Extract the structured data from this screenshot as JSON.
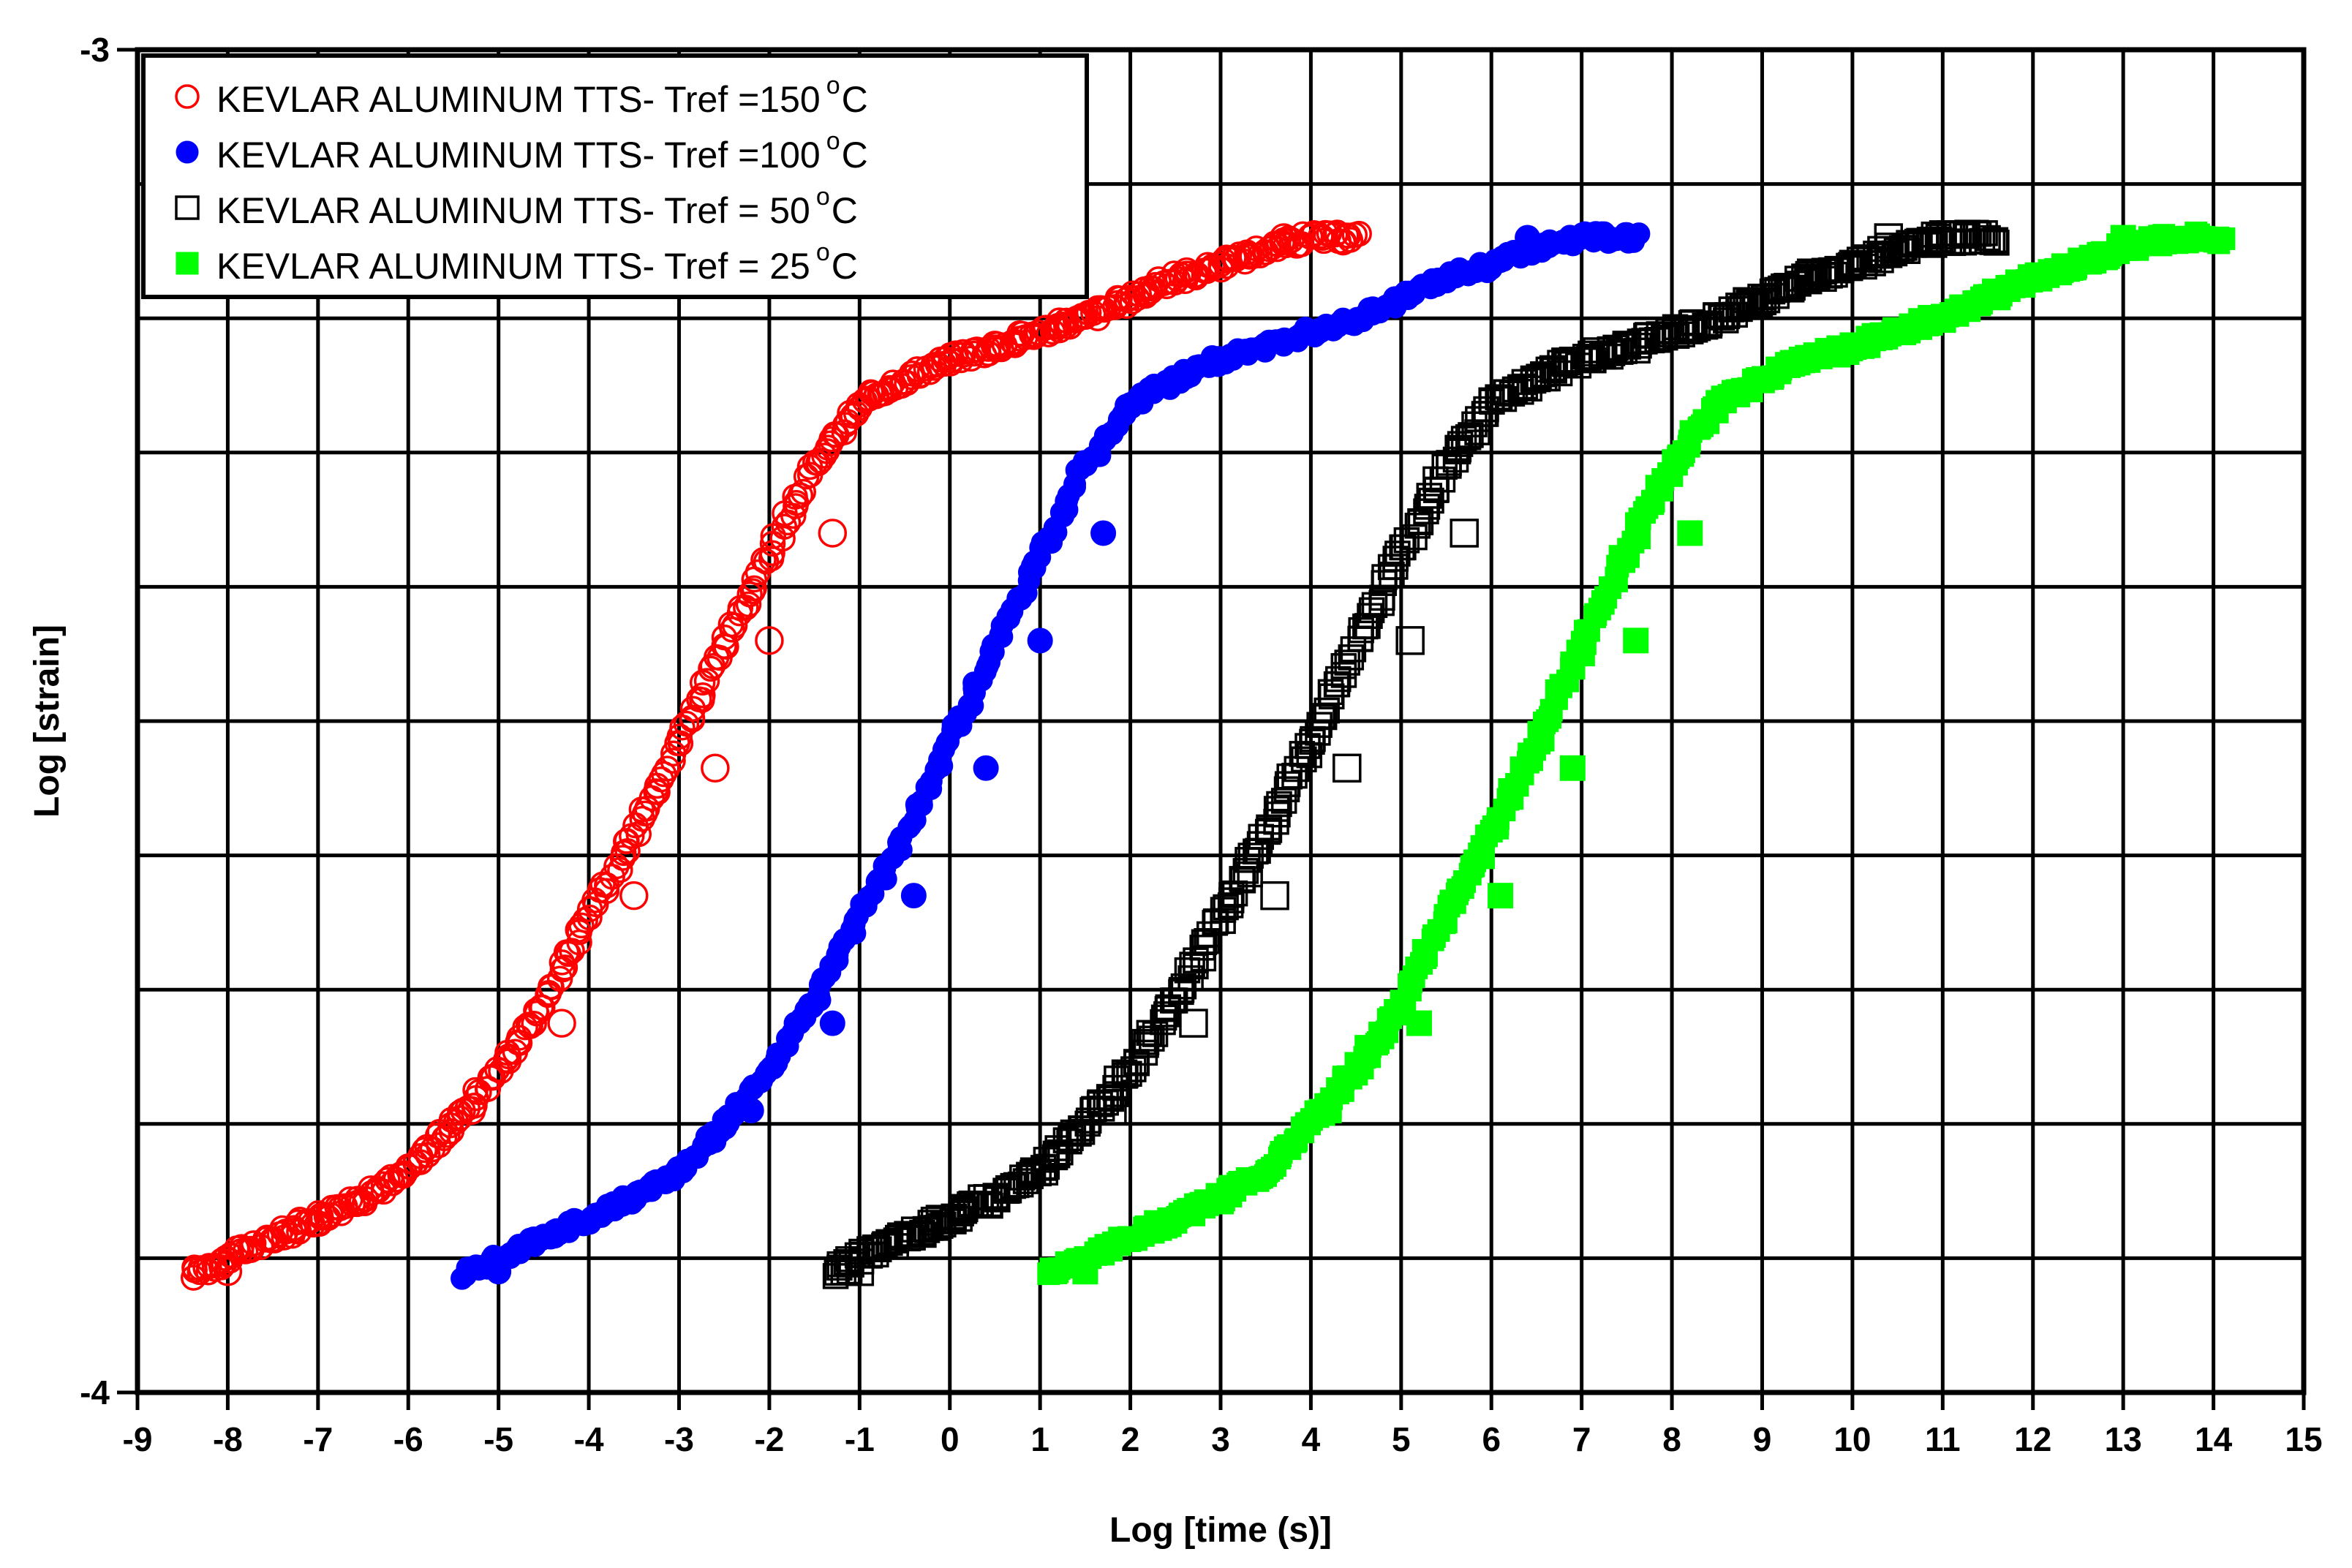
{
  "chart_data": {
    "type": "scatter",
    "title": "",
    "xlabel": "Log [time (s)]",
    "ylabel": "Log [strain]",
    "xlim": [
      -9,
      15
    ],
    "ylim": [
      -4,
      -3
    ],
    "x_ticks": [
      -9,
      -8,
      -7,
      -6,
      -5,
      -4,
      -3,
      -2,
      -1,
      0,
      1,
      2,
      3,
      4,
      5,
      6,
      7,
      8,
      9,
      10,
      11,
      12,
      13,
      14,
      15
    ],
    "y_tick_labels": [
      {
        "value": -3,
        "label": "-3"
      },
      {
        "value": -4,
        "label": "-4"
      }
    ],
    "y_grid_step": 0.1,
    "grid": true,
    "legend_position": "top-left",
    "series": [
      {
        "name": "KEVLAR ALUMINUM TTS- Tref =150",
        "unit_superscript": "o",
        "unit": "C",
        "marker": "open-circle",
        "color": "#ff0000",
        "x_range": [
          -8.4,
          4.5
        ],
        "points": [
          [
            -8.4,
            -3.912
          ],
          [
            -8.0,
            -3.9
          ],
          [
            -7.5,
            -3.885
          ],
          [
            -7.0,
            -3.87
          ],
          [
            -6.5,
            -3.855
          ],
          [
            -6.0,
            -3.835
          ],
          [
            -5.5,
            -3.8
          ],
          [
            -5.0,
            -3.76
          ],
          [
            -4.5,
            -3.71
          ],
          [
            -4.0,
            -3.645
          ],
          [
            -3.5,
            -3.585
          ],
          [
            -3.0,
            -3.515
          ],
          [
            -2.5,
            -3.445
          ],
          [
            -2.0,
            -3.375
          ],
          [
            -1.5,
            -3.31
          ],
          [
            -1.0,
            -3.265
          ],
          [
            -0.5,
            -3.245
          ],
          [
            0.0,
            -3.23
          ],
          [
            0.5,
            -3.222
          ],
          [
            1.0,
            -3.21
          ],
          [
            1.5,
            -3.2
          ],
          [
            2.0,
            -3.185
          ],
          [
            2.5,
            -3.17
          ],
          [
            3.0,
            -3.16
          ],
          [
            3.5,
            -3.148
          ],
          [
            4.0,
            -3.14
          ],
          [
            4.5,
            -3.14
          ]
        ],
        "outliers": [
          [
            -8.0,
            -3.91
          ],
          [
            -5.3,
            -3.79
          ],
          [
            -4.3,
            -3.725
          ],
          [
            -3.5,
            -3.63
          ],
          [
            -2.6,
            -3.535
          ],
          [
            -2.0,
            -3.44
          ],
          [
            -1.3,
            -3.36
          ],
          [
            0.5,
            -3.22
          ],
          [
            3.7,
            -3.14
          ]
        ]
      },
      {
        "name": "KEVLAR ALUMINUM TTS- Tref =100",
        "unit_superscript": "o",
        "unit": "C",
        "marker": "filled-circle",
        "color": "#0000ff",
        "x_range": [
          -5.4,
          7.6
        ],
        "points": [
          [
            -5.4,
            -3.912
          ],
          [
            -5.0,
            -3.9
          ],
          [
            -4.5,
            -3.885
          ],
          [
            -4.0,
            -3.87
          ],
          [
            -3.5,
            -3.855
          ],
          [
            -3.0,
            -3.835
          ],
          [
            -2.5,
            -3.8
          ],
          [
            -2.0,
            -3.76
          ],
          [
            -1.5,
            -3.71
          ],
          [
            -1.0,
            -3.645
          ],
          [
            -0.5,
            -3.585
          ],
          [
            0.0,
            -3.515
          ],
          [
            0.5,
            -3.445
          ],
          [
            1.0,
            -3.375
          ],
          [
            1.5,
            -3.31
          ],
          [
            2.0,
            -3.265
          ],
          [
            2.5,
            -3.245
          ],
          [
            3.0,
            -3.23
          ],
          [
            3.5,
            -3.222
          ],
          [
            4.0,
            -3.21
          ],
          [
            4.5,
            -3.2
          ],
          [
            5.0,
            -3.185
          ],
          [
            5.5,
            -3.17
          ],
          [
            6.0,
            -3.16
          ],
          [
            6.5,
            -3.148
          ],
          [
            7.0,
            -3.14
          ],
          [
            7.6,
            -3.14
          ]
        ],
        "outliers": [
          [
            -5.0,
            -3.91
          ],
          [
            -2.2,
            -3.79
          ],
          [
            -1.3,
            -3.725
          ],
          [
            -0.4,
            -3.63
          ],
          [
            0.4,
            -3.535
          ],
          [
            1.0,
            -3.44
          ],
          [
            1.7,
            -3.36
          ],
          [
            3.5,
            -3.22
          ],
          [
            6.4,
            -3.14
          ]
        ]
      },
      {
        "name": "KEVLAR ALUMINUM TTS- Tref = 50",
        "unit_superscript": "o",
        "unit": "C",
        "marker": "open-square",
        "color": "#000000",
        "x_range": [
          -1.3,
          11.6
        ],
        "points": [
          [
            -1.3,
            -3.912
          ],
          [
            -1.0,
            -3.9
          ],
          [
            -0.5,
            -3.885
          ],
          [
            0.0,
            -3.87
          ],
          [
            0.5,
            -3.855
          ],
          [
            1.0,
            -3.835
          ],
          [
            1.5,
            -3.8
          ],
          [
            2.0,
            -3.76
          ],
          [
            2.5,
            -3.71
          ],
          [
            3.0,
            -3.645
          ],
          [
            3.5,
            -3.585
          ],
          [
            4.0,
            -3.515
          ],
          [
            4.5,
            -3.445
          ],
          [
            5.0,
            -3.375
          ],
          [
            5.5,
            -3.31
          ],
          [
            6.0,
            -3.265
          ],
          [
            6.5,
            -3.245
          ],
          [
            7.0,
            -3.23
          ],
          [
            7.5,
            -3.222
          ],
          [
            8.0,
            -3.21
          ],
          [
            8.5,
            -3.2
          ],
          [
            9.0,
            -3.185
          ],
          [
            9.5,
            -3.17
          ],
          [
            10.0,
            -3.16
          ],
          [
            10.5,
            -3.148
          ],
          [
            11.0,
            -3.14
          ],
          [
            11.6,
            -3.14
          ]
        ],
        "outliers": [
          [
            -1.0,
            -3.91
          ],
          [
            1.8,
            -3.79
          ],
          [
            2.7,
            -3.725
          ],
          [
            3.6,
            -3.63
          ],
          [
            4.4,
            -3.535
          ],
          [
            5.1,
            -3.44
          ],
          [
            5.7,
            -3.36
          ],
          [
            7.5,
            -3.22
          ],
          [
            10.4,
            -3.14
          ]
        ]
      },
      {
        "name": "KEVLAR ALUMINUM TTS- Tref = 25",
        "unit_superscript": "o",
        "unit": "C",
        "marker": "filled-square",
        "color": "#00ff00",
        "x_range": [
          1.1,
          14.1
        ],
        "points": [
          [
            1.1,
            -3.912
          ],
          [
            1.5,
            -3.9
          ],
          [
            2.0,
            -3.885
          ],
          [
            2.5,
            -3.87
          ],
          [
            3.0,
            -3.855
          ],
          [
            3.5,
            -3.835
          ],
          [
            4.0,
            -3.8
          ],
          [
            4.5,
            -3.76
          ],
          [
            5.0,
            -3.71
          ],
          [
            5.5,
            -3.645
          ],
          [
            6.0,
            -3.585
          ],
          [
            6.5,
            -3.515
          ],
          [
            7.0,
            -3.445
          ],
          [
            7.5,
            -3.375
          ],
          [
            8.0,
            -3.31
          ],
          [
            8.5,
            -3.265
          ],
          [
            9.0,
            -3.245
          ],
          [
            9.5,
            -3.23
          ],
          [
            10.0,
            -3.222
          ],
          [
            10.5,
            -3.21
          ],
          [
            11.0,
            -3.2
          ],
          [
            11.5,
            -3.185
          ],
          [
            12.0,
            -3.17
          ],
          [
            12.5,
            -3.16
          ],
          [
            13.0,
            -3.148
          ],
          [
            13.5,
            -3.14
          ],
          [
            14.1,
            -3.14
          ]
        ],
        "outliers": [
          [
            1.5,
            -3.91
          ],
          [
            4.2,
            -3.79
          ],
          [
            5.2,
            -3.725
          ],
          [
            6.1,
            -3.63
          ],
          [
            6.9,
            -3.535
          ],
          [
            7.6,
            -3.44
          ],
          [
            8.2,
            -3.36
          ],
          [
            10.0,
            -3.22
          ],
          [
            13.0,
            -3.14
          ]
        ]
      }
    ]
  }
}
